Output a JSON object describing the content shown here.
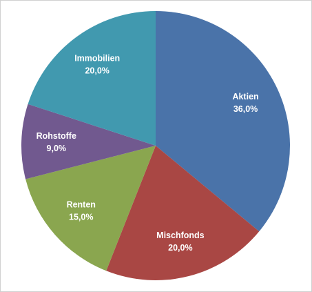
{
  "chart_data": {
    "type": "pie",
    "categories": [
      "Aktien",
      "Mischfonds",
      "Renten",
      "Rohstoffe",
      "Immobilien"
    ],
    "values": [
      36,
      20,
      15,
      9,
      20
    ],
    "value_labels": [
      "36,0%",
      "20,0%",
      "15,0%",
      "9,0%",
      "20,0%"
    ],
    "colors": [
      "#4a73a9",
      "#a94744",
      "#8aa64f",
      "#71598f",
      "#4199af"
    ]
  }
}
